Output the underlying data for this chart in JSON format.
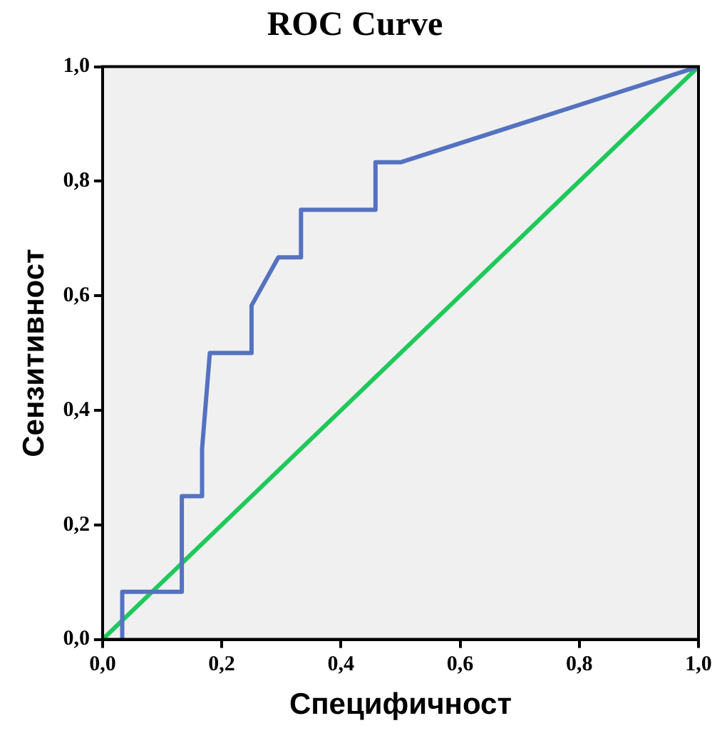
{
  "chart_data": {
    "type": "line",
    "title": "ROC Curve",
    "xlabel": "Специфичност",
    "ylabel": "Сензитивност",
    "xlim": [
      0,
      1
    ],
    "ylim": [
      0,
      1
    ],
    "xticks": [
      {
        "value": 0,
        "label": "0,0"
      },
      {
        "value": 0.2,
        "label": "0,2"
      },
      {
        "value": 0.4,
        "label": "0,4"
      },
      {
        "value": 0.6,
        "label": "0,6"
      },
      {
        "value": 0.8,
        "label": "0,8"
      },
      {
        "value": 1,
        "label": "1,0"
      }
    ],
    "yticks": [
      {
        "value": 0,
        "label": "0,0"
      },
      {
        "value": 0.2,
        "label": "0,2"
      },
      {
        "value": 0.4,
        "label": "0,4"
      },
      {
        "value": 0.6,
        "label": "0,6"
      },
      {
        "value": 0.8,
        "label": "0,8"
      },
      {
        "value": 1,
        "label": "1,0"
      }
    ],
    "grid": false,
    "legend": false,
    "marker": "none",
    "line_style": "solid",
    "series": [
      {
        "color": "#5572c0",
        "x": [
          0.033,
          0.033,
          0.133,
          0.133,
          0.167,
          0.167,
          0.18,
          0.25,
          0.25,
          0.295,
          0.333,
          0.333,
          0.458,
          0.458,
          0.5,
          1
        ],
        "values": [
          0,
          0.083,
          0.083,
          0.25,
          0.25,
          0.333,
          0.5,
          0.5,
          0.583,
          0.667,
          0.667,
          0.75,
          0.75,
          0.833,
          0.833,
          1
        ]
      },
      {
        "color": "#1ec95a",
        "x": [
          0,
          1
        ],
        "values": [
          0,
          1
        ]
      }
    ]
  }
}
